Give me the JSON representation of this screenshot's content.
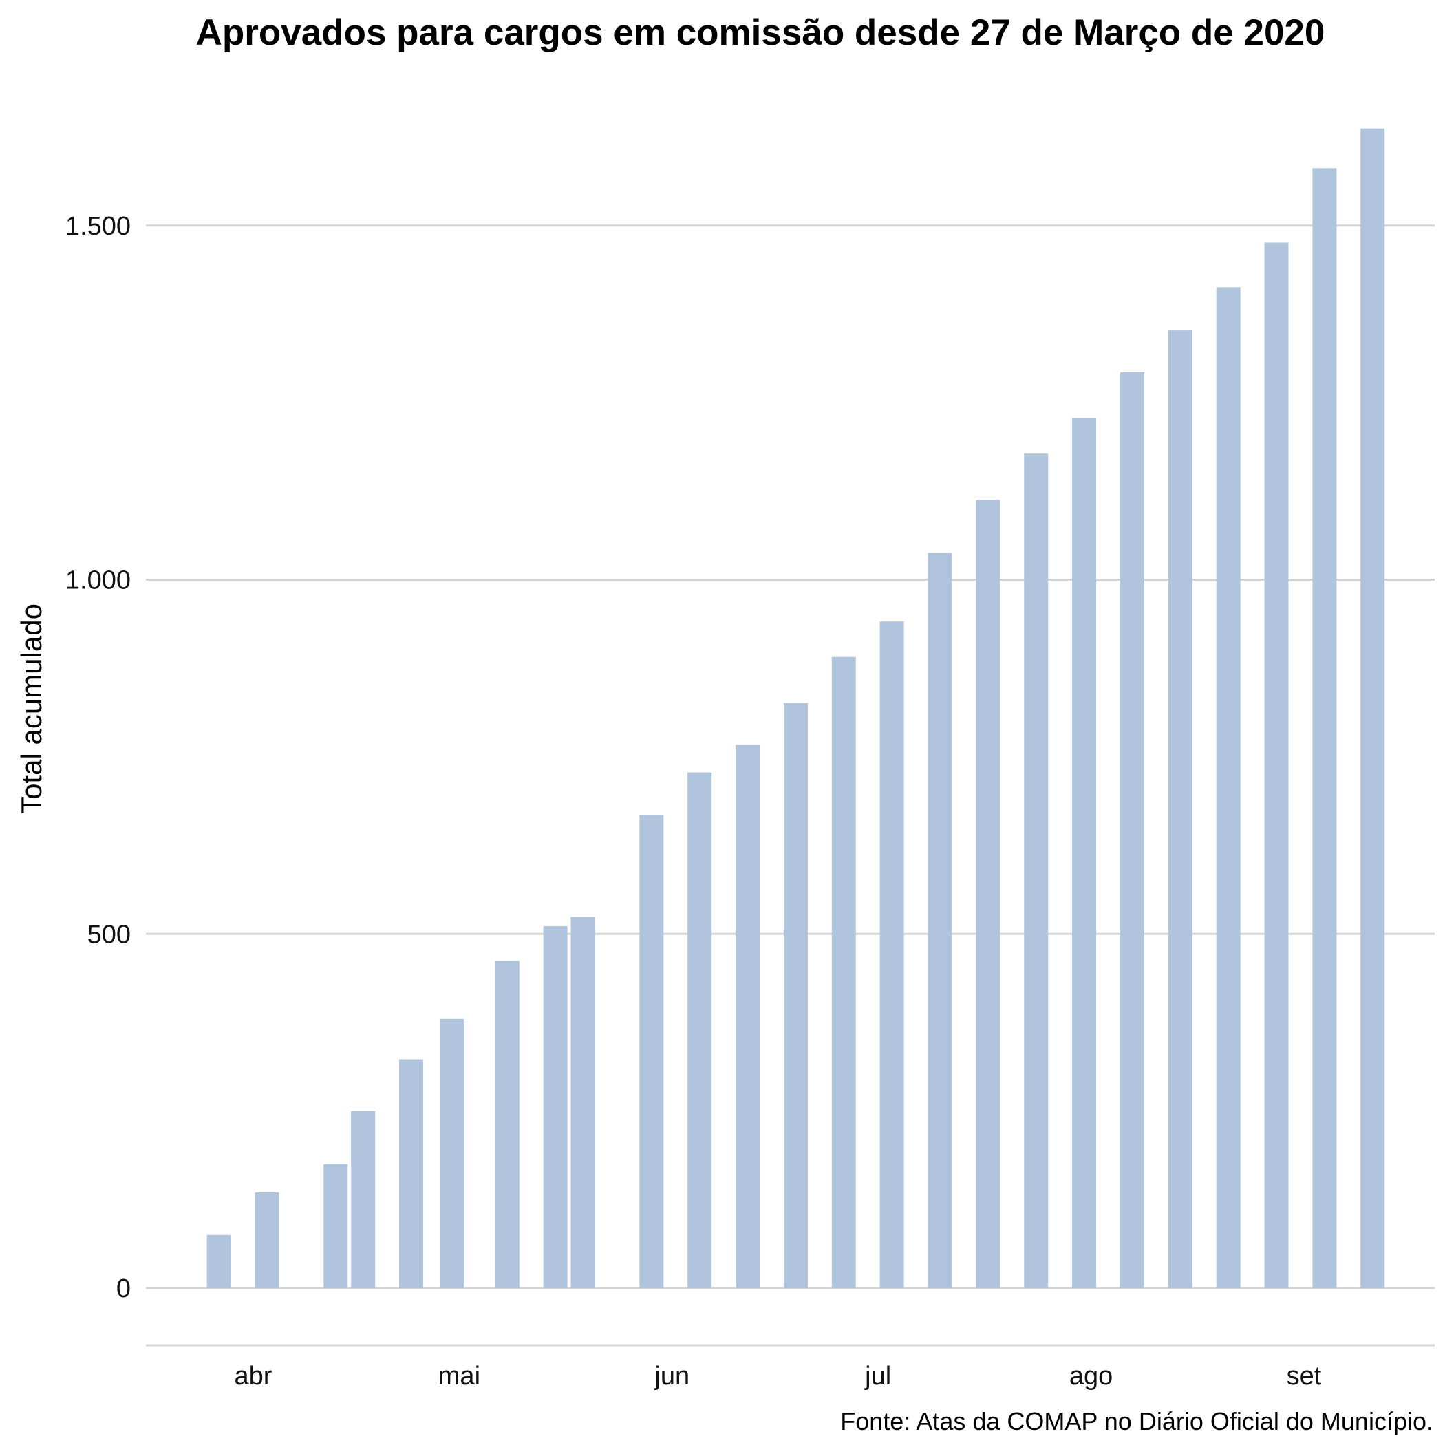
{
  "chart_data": {
    "type": "bar",
    "title": "Aprovados para cargos em comissão desde 27 de Março de 2020",
    "ylabel": "Total acumulado",
    "xlabel": "",
    "caption": "Fonte: Atas da COMAP no Diário Oficial do Município.",
    "ylim": [
      0,
      1650
    ],
    "yticks": [
      0,
      500,
      1000,
      1500
    ],
    "ytick_labels": [
      "0",
      "500",
      "1.000",
      "1.500"
    ],
    "xticks": [
      {
        "label": "abr",
        "date": "2020-04-01"
      },
      {
        "label": "mai",
        "date": "2020-05-01"
      },
      {
        "label": "jun",
        "date": "2020-06-01"
      },
      {
        "label": "jul",
        "date": "2020-07-01"
      },
      {
        "label": "ago",
        "date": "2020-08-01"
      },
      {
        "label": "set",
        "date": "2020-09-01"
      }
    ],
    "grid": true,
    "bar_color": "#b0c4de",
    "bars": [
      {
        "date": "2020-03-27",
        "value": 75
      },
      {
        "date": "2020-04-03",
        "value": 135
      },
      {
        "date": "2020-04-13",
        "value": 175
      },
      {
        "date": "2020-04-17",
        "value": 250
      },
      {
        "date": "2020-04-24",
        "value": 323
      },
      {
        "date": "2020-04-30",
        "value": 380
      },
      {
        "date": "2020-05-08",
        "value": 462
      },
      {
        "date": "2020-05-15",
        "value": 511
      },
      {
        "date": "2020-05-19",
        "value": 524
      },
      {
        "date": "2020-05-29",
        "value": 668
      },
      {
        "date": "2020-06-05",
        "value": 728
      },
      {
        "date": "2020-06-12",
        "value": 767
      },
      {
        "date": "2020-06-19",
        "value": 826
      },
      {
        "date": "2020-06-26",
        "value": 891
      },
      {
        "date": "2020-07-03",
        "value": 941
      },
      {
        "date": "2020-07-10",
        "value": 1038
      },
      {
        "date": "2020-07-17",
        "value": 1113
      },
      {
        "date": "2020-07-24",
        "value": 1178
      },
      {
        "date": "2020-07-31",
        "value": 1228
      },
      {
        "date": "2020-08-07",
        "value": 1293
      },
      {
        "date": "2020-08-14",
        "value": 1352
      },
      {
        "date": "2020-08-21",
        "value": 1413
      },
      {
        "date": "2020-08-28",
        "value": 1476
      },
      {
        "date": "2020-09-04",
        "value": 1581
      },
      {
        "date": "2020-09-11",
        "value": 1637
      }
    ]
  }
}
